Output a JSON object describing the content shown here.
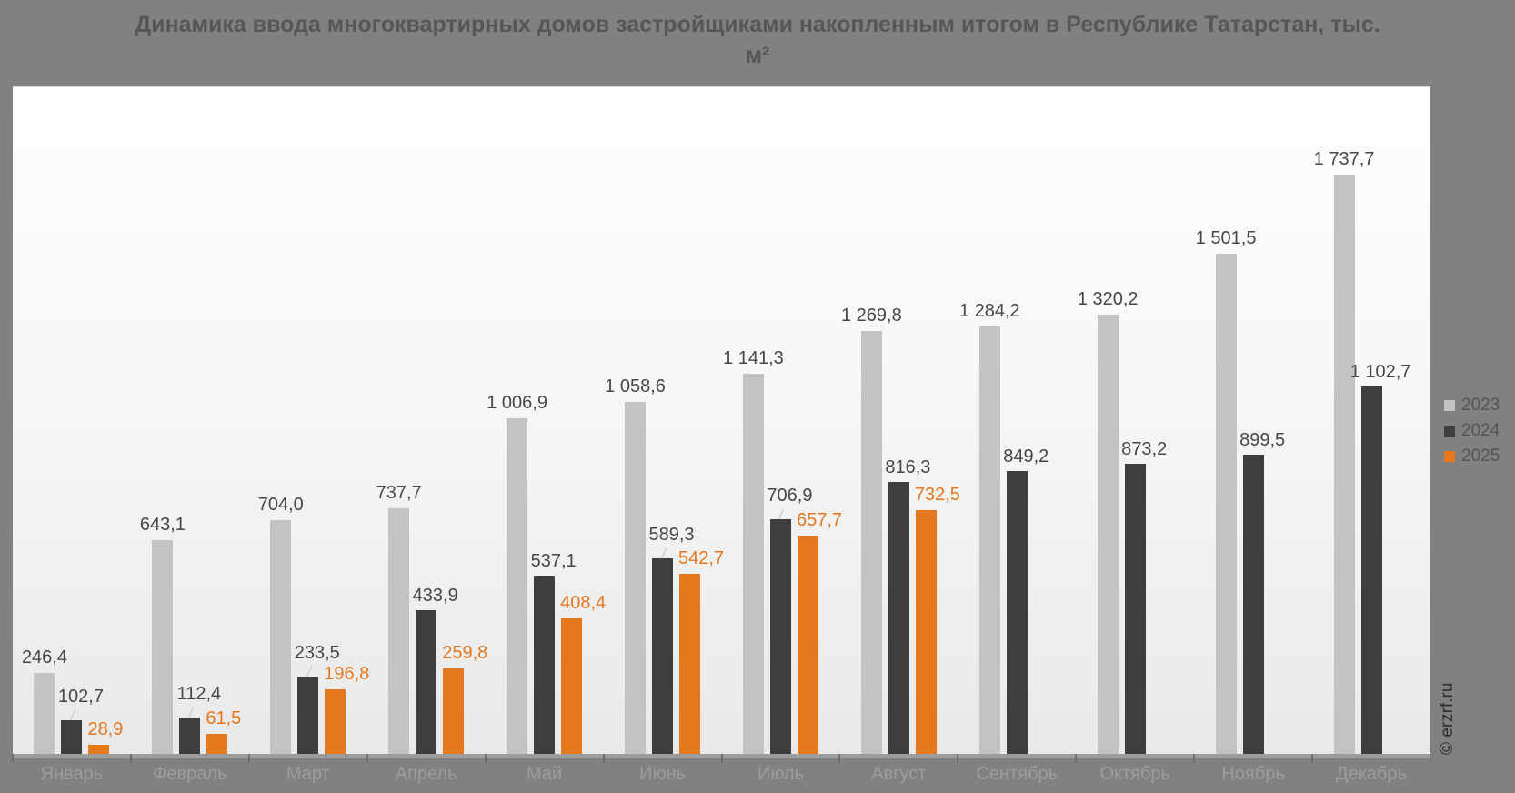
{
  "watermark": "© erzrf.ru",
  "colors": {
    "background": "#818181",
    "plot_gradient_top": "#fefefe",
    "plot_gradient_bottom": "#e9e9e9",
    "axis_strip": "#9c9c9c",
    "tick": "#6f6f6f",
    "month_label": "#9d9d9d",
    "value_label": "#474747",
    "title_text": "#565656",
    "legend_text": "#545454",
    "series_2023": "#c3c3c3",
    "series_2024": "#3e3e3e",
    "series_2025": "#e5771e"
  },
  "chart_data": {
    "type": "bar",
    "title": "Динамика ввода многоквартирных домов застройщиками накопленным итогом в Республике Татарстан, тыс. м²",
    "categories": [
      "Январь",
      "Февраль",
      "Март",
      "Апрель",
      "Май",
      "Июнь",
      "Июль",
      "Август",
      "Сентябрь",
      "Октябрь",
      "Ноябрь",
      "Декабрь"
    ],
    "series": [
      {
        "name": "2023",
        "color": "#c3c3c3",
        "label_color": "#474747",
        "values": [
          246.4,
          643.1,
          704.0,
          737.7,
          1006.9,
          1058.6,
          1141.3,
          1269.8,
          1284.2,
          1320.2,
          1501.5,
          1737.7
        ],
        "labels": [
          "246,4",
          "643,1",
          "704,0",
          "737,7",
          "1 006,9",
          "1 058,6",
          "1 141,3",
          "1 269,8",
          "1 284,2",
          "1 320,2",
          "1 501,5",
          "1 737,7"
        ]
      },
      {
        "name": "2024",
        "color": "#3e3e3e",
        "label_color": "#474747",
        "values": [
          102.7,
          112.4,
          233.5,
          433.9,
          537.1,
          589.3,
          706.9,
          816.3,
          849.2,
          873.2,
          899.5,
          1102.7
        ],
        "labels": [
          "102,7",
          "112,4",
          "233,5",
          "433,9",
          "537,1",
          "589,3",
          "706,9",
          "816,3",
          "849,2",
          "873,2",
          "899,5",
          "1 102,7"
        ],
        "raised_label_indices": [
          0,
          1,
          2,
          5,
          6
        ]
      },
      {
        "name": "2025",
        "color": "#e5771e",
        "label_color": "#e5771e",
        "values": [
          28.9,
          61.5,
          196.8,
          259.8,
          408.4,
          542.7,
          657.7,
          732.5,
          null,
          null,
          null,
          null
        ],
        "labels": [
          "28,9",
          "61,5",
          "196,8",
          "259,8",
          "408,4",
          "542,7",
          "657,7",
          "732,5",
          null,
          null,
          null,
          null
        ]
      }
    ],
    "ylim": [
      0,
      2000
    ],
    "grid": false,
    "legend_position": "right",
    "xlabel": "",
    "ylabel": "тыс. м²"
  }
}
